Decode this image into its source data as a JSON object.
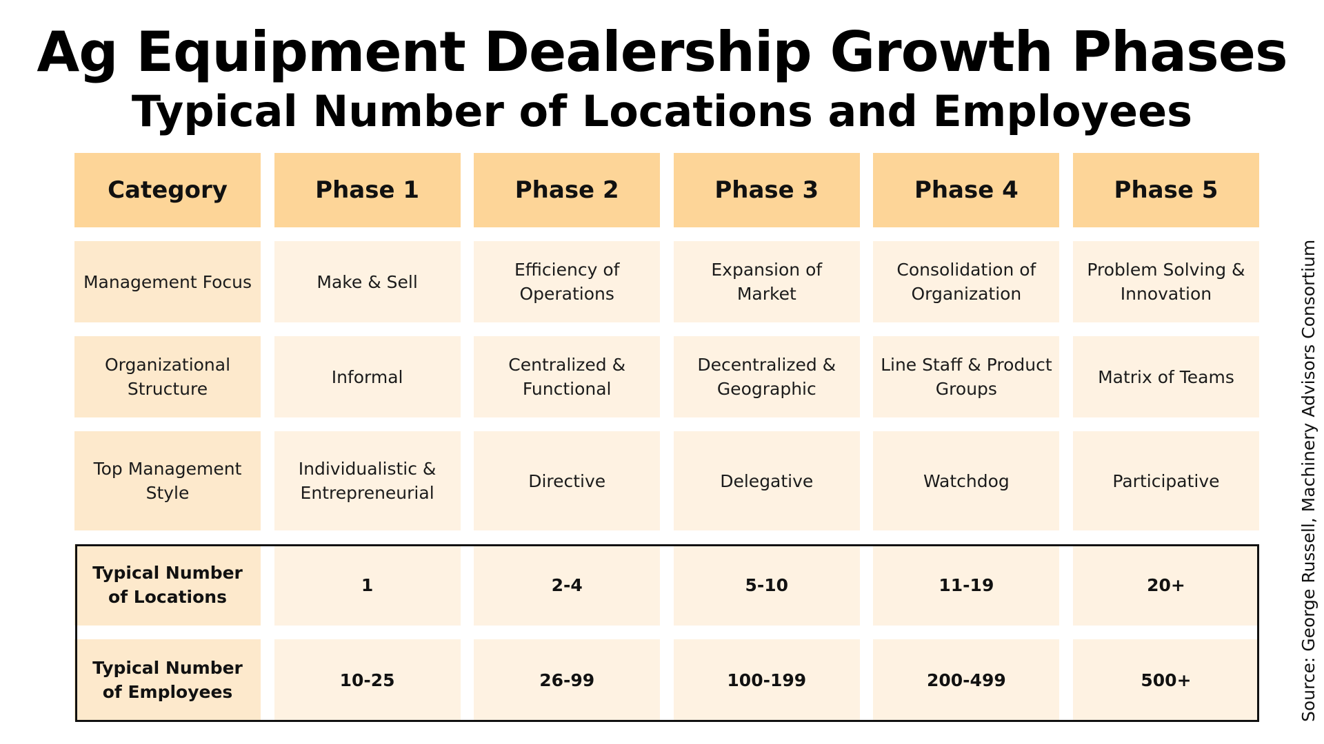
{
  "title": "Ag Equipment Dealership Growth Phases",
  "subtitle": "Typical Number of Locations and Employees",
  "source": "Source: George Russell, Machinery Advisors Consortium",
  "colors": {
    "header_bg": "#fdd598",
    "category_bg": "#fde9cc",
    "cell_bg": "#fef2e2",
    "highlight_border": "#111111"
  },
  "chart_data": {
    "type": "table",
    "columns": [
      "Category",
      "Phase 1",
      "Phase 2",
      "Phase 3",
      "Phase 4",
      "Phase 5"
    ],
    "rows": [
      {
        "category": "Management Focus",
        "values": [
          "Make & Sell",
          "Efficiency of Operations",
          "Expansion of Market",
          "Consolidation of Organization",
          "Problem Solving & Innovation"
        ]
      },
      {
        "category": "Organizational Structure",
        "values": [
          "Informal",
          "Centralized & Functional",
          "Decentralized & Geographic",
          "Line Staff & Product Groups",
          "Matrix of Teams"
        ]
      },
      {
        "category": "Top Management Style",
        "values": [
          "Individualistic & Entrepreneurial",
          "Directive",
          "Delegative",
          "Watchdog",
          "Participative"
        ]
      },
      {
        "category": "Typical Number of Locations",
        "values": [
          "1",
          "2-4",
          "5-10",
          "11-19",
          "20+"
        ]
      },
      {
        "category": "Typical Number of Employees",
        "values": [
          "10-25",
          "26-99",
          "100-199",
          "200-499",
          "500+"
        ]
      }
    ]
  }
}
